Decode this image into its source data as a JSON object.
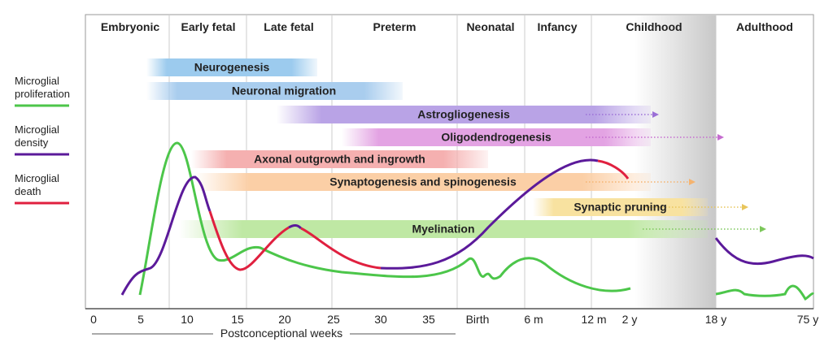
{
  "stages": [
    "Embryonic",
    "Early fetal",
    "Late fetal",
    "Preterm",
    "Neonatal",
    "Infancy",
    "Childhood",
    "Adulthood"
  ],
  "processes": [
    "Neurogenesis",
    "Neuronal migration",
    "Astrogliogenesis",
    "Oligodendrogenesis",
    "Axonal outgrowth and ingrowth",
    "Synaptogenesis and spinogenesis",
    "Synaptic pruning",
    "Myelination"
  ],
  "axis": {
    "ticks": [
      "0",
      "5",
      "10",
      "15",
      "20",
      "25",
      "30",
      "35",
      "Birth",
      "6 m",
      "12 m",
      "2 y",
      "18 y",
      "75 y"
    ],
    "label": "Postconceptional weeks"
  },
  "legend": [
    [
      "Microglial",
      "proliferation"
    ],
    [
      "Microglial",
      "density"
    ],
    [
      "Microglial",
      "death"
    ]
  ]
}
